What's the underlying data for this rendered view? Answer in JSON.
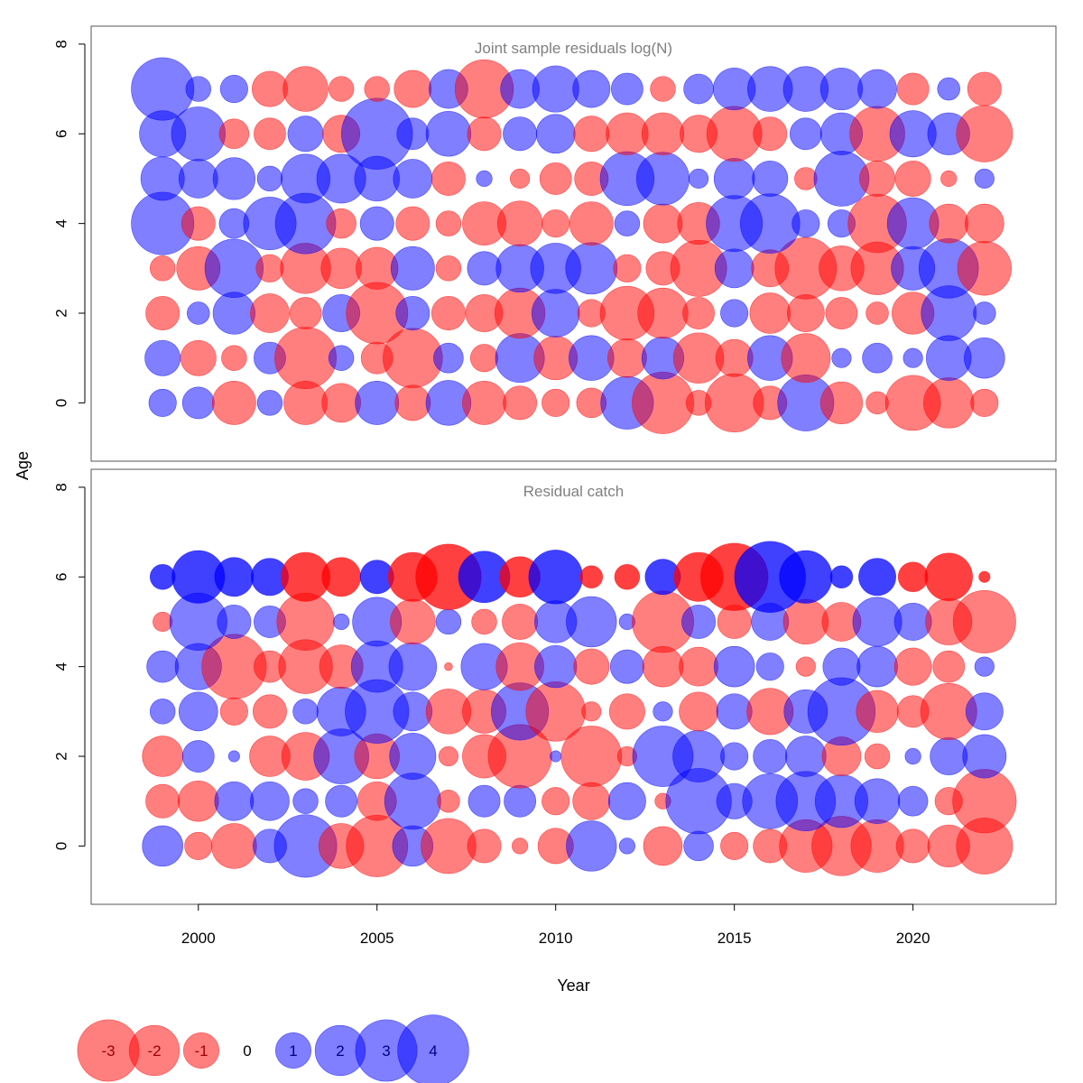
{
  "colors": {
    "negative": "#ff0000",
    "positive": "#0000ff",
    "joint_opacity": 0.5,
    "catch_strong_opacity": 0.75,
    "catch_weak_opacity": 0.5
  },
  "axes": {
    "x_title": "Year",
    "y_title": "Age"
  },
  "chart_data": [
    {
      "type": "scatter",
      "subtype": "bubble",
      "title": "Joint sample residuals log(N)",
      "xlabel": "Year",
      "ylabel": "Age",
      "xlim": [
        1997,
        2024
      ],
      "ylim": [
        -1.3,
        8.4
      ],
      "x_ticks": [
        2000,
        2005,
        2010,
        2015,
        2020
      ],
      "y_ticks": [
        0,
        2,
        4,
        6,
        8
      ],
      "years": [
        1999,
        2000,
        2001,
        2002,
        2003,
        2004,
        2005,
        2006,
        2007,
        2008,
        2009,
        2010,
        2011,
        2012,
        2013,
        2014,
        2015,
        2016,
        2017,
        2018,
        2019,
        2020,
        2021,
        2022
      ],
      "ages": [
        0,
        1,
        2,
        3,
        4,
        5,
        6,
        7
      ],
      "residuals": [
        [
          0.6,
          0.8,
          -1.5,
          0.5,
          -1.5,
          -1.2,
          1.5,
          -1.0,
          1.6,
          -1.5,
          -0.9,
          -0.6,
          -0.7,
          2.2,
          -3.0,
          -0.5,
          -2.7,
          -0.9,
          2.5,
          -1.4,
          -0.4,
          -2.4,
          -2.0,
          -0.6
        ],
        [
          1.0,
          -1.0,
          -0.5,
          0.8,
          -3.0,
          0.5,
          -0.8,
          -2.8,
          0.7,
          -0.6,
          1.9,
          -1.5,
          1.6,
          -1.2,
          1.4,
          -2.0,
          -1.1,
          1.6,
          -1.9,
          0.3,
          0.7,
          0.3,
          1.6,
          1.3
        ],
        [
          -0.9,
          0.4,
          1.4,
          -1.2,
          -0.8,
          1.1,
          -3.0,
          0.9,
          -0.9,
          -1.1,
          -2.0,
          1.8,
          -0.6,
          -2.3,
          -2.0,
          -0.8,
          0.6,
          -1.3,
          -1.1,
          -0.8,
          -0.4,
          -1.4,
          2.4,
          0.4
        ],
        [
          -0.5,
          -1.5,
          2.7,
          -0.6,
          -2.0,
          -1.3,
          -1.4,
          1.5,
          -0.5,
          0.9,
          1.8,
          2.0,
          2.1,
          -0.6,
          -0.9,
          -2.5,
          1.2,
          -1.1,
          -3.0,
          -1.6,
          -2.2,
          1.5,
          2.8,
          -2.3
        ],
        [
          3.1,
          -0.9,
          0.7,
          2.2,
          2.9,
          -0.7,
          0.9,
          -0.9,
          -0.5,
          -1.5,
          -1.6,
          -0.6,
          -1.5,
          0.5,
          -1.2,
          -1.4,
          2.5,
          2.8,
          0.6,
          0.6,
          -2.7,
          2.1,
          -1.2,
          -1.2
        ],
        [
          1.5,
          1.2,
          1.4,
          0.5,
          1.9,
          1.9,
          1.6,
          1.2,
          -0.9,
          0.2,
          -0.3,
          -0.8,
          -0.9,
          2.3,
          2.2,
          0.3,
          1.3,
          1.0,
          -0.4,
          2.4,
          -1.0,
          -1.0,
          -0.2,
          0.3
        ],
        [
          1.7,
          2.3,
          -0.7,
          -0.8,
          1.0,
          -1.1,
          4.0,
          0.8,
          1.6,
          -0.9,
          0.9,
          1.2,
          -1.0,
          -1.4,
          -1.4,
          -1.1,
          -2.4,
          -0.9,
          0.8,
          1.4,
          -2.4,
          1.7,
          1.4,
          -2.5
        ],
        [
          3.1,
          0.5,
          0.6,
          -1.0,
          -1.6,
          -0.5,
          -0.5,
          -1.1,
          1.2,
          -2.7,
          1.2,
          1.7,
          1.1,
          0.8,
          -0.5,
          0.7,
          1.4,
          1.6,
          1.6,
          1.4,
          1.2,
          -0.8,
          0.4,
          -0.9
        ]
      ]
    },
    {
      "type": "scatter",
      "subtype": "bubble",
      "title": "Residual catch",
      "xlabel": "Year",
      "ylabel": "Age",
      "xlim": [
        1997,
        2024
      ],
      "ylim": [
        -1.3,
        8.4
      ],
      "x_ticks": [
        2000,
        2005,
        2010,
        2015,
        2020
      ],
      "y_ticks": [
        0,
        2,
        4,
        6,
        8
      ],
      "years": [
        1999,
        2000,
        2001,
        2002,
        2003,
        2004,
        2005,
        2006,
        2007,
        2008,
        2009,
        2010,
        2011,
        2012,
        2013,
        2014,
        2015,
        2016,
        2017,
        2018,
        2019,
        2020,
        2021,
        2022
      ],
      "ages": [
        0,
        1,
        2,
        3,
        4,
        5,
        6
      ],
      "residuals": [
        [
          1.3,
          -0.6,
          -1.6,
          0.9,
          3.1,
          -1.6,
          -3.0,
          1.3,
          -2.4,
          -0.9,
          -0.2,
          -1.0,
          2.0,
          0.2,
          -1.2,
          0.7,
          -0.6,
          -0.9,
          -2.2,
          -2.8,
          -2.2,
          -0.9,
          -1.4,
          -2.5
        ],
        [
          -0.9,
          -1.3,
          1.2,
          1.2,
          0.5,
          0.8,
          -1.2,
          2.5,
          -0.4,
          0.8,
          0.8,
          -0.6,
          -1.1,
          1.1,
          -0.2,
          3.4,
          1.0,
          2.4,
          2.8,
          2.2,
          1.6,
          0.7,
          -0.6,
          -3.2
        ],
        [
          -1.3,
          0.8,
          0.1,
          -1.3,
          -1.8,
          2.4,
          -1.6,
          1.7,
          -0.3,
          -1.5,
          -3.2,
          0.1,
          -2.9,
          -0.3,
          2.9,
          2.1,
          0.6,
          0.9,
          1.3,
          -1.2,
          -0.5,
          0.2,
          1.1,
          1.5
        ],
        [
          0.5,
          1.2,
          -0.6,
          -0.9,
          0.5,
          1.9,
          3.2,
          1.2,
          -1.6,
          -1.5,
          2.6,
          -2.8,
          -0.3,
          -1.0,
          0.3,
          -1.2,
          1.0,
          -1.7,
          1.5,
          3.6,
          -1.4,
          -0.8,
          -2.5,
          1.1
        ],
        [
          0.8,
          1.7,
          -3.3,
          -0.8,
          -2.3,
          -1.5,
          2.1,
          1.8,
          -0.05,
          1.7,
          -1.8,
          1.4,
          -1.0,
          0.9,
          -1.3,
          -1.2,
          1.3,
          0.6,
          -0.3,
          1.1,
          1.3,
          -1.1,
          -0.8,
          0.3
        ],
        [
          -0.3,
          2.6,
          0.9,
          0.8,
          -2.6,
          0.2,
          1.9,
          -1.6,
          0.5,
          -0.5,
          -1.0,
          1.4,
          2.0,
          0.2,
          -3.0,
          0.9,
          -0.9,
          1.1,
          -1.6,
          -1.2,
          1.9,
          1.1,
          -1.7,
          -3.1
        ],
        [
          0.5,
          2.2,
          1.2,
          1.1,
          -1.9,
          -1.2,
          0.9,
          -1.9,
          -3.4,
          2.1,
          -1.3,
          2.3,
          -0.4,
          -0.5,
          1.0,
          -1.9,
          -3.6,
          4.0,
          2.2,
          0.4,
          1.1,
          -0.7,
          -1.8,
          -0.1
        ]
      ]
    }
  ],
  "legend": [
    {
      "label": "-3",
      "value": -3
    },
    {
      "label": "-2",
      "value": -2
    },
    {
      "label": "-1",
      "value": -1
    },
    {
      "label": "0",
      "value": 0
    },
    {
      "label": "1",
      "value": 1
    },
    {
      "label": "2",
      "value": 2
    },
    {
      "label": "3",
      "value": 3
    },
    {
      "label": "4",
      "value": 4
    }
  ]
}
